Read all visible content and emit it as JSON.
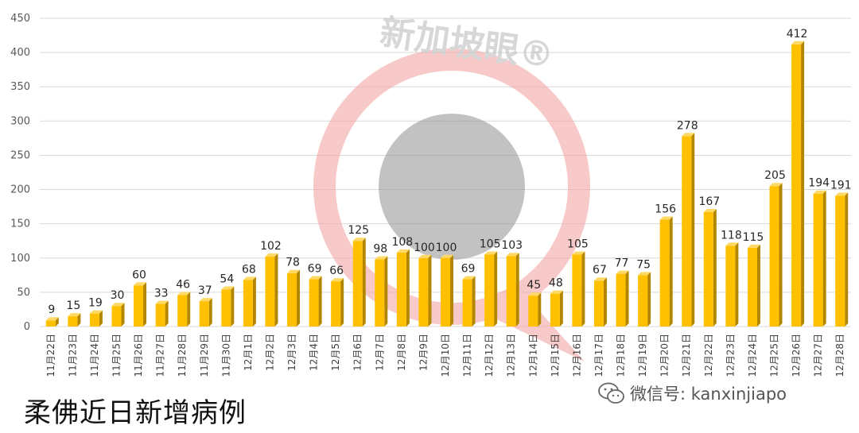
{
  "colors": {
    "bar_front": "#FFC000",
    "bar_side": "#B38600",
    "bar_top": "#FFD966",
    "grid": "#d9d9d9",
    "watermark_ring": "#f4a6a6",
    "watermark_core": "#9a9a9a"
  },
  "watermark": {
    "text": "新加坡眼®"
  },
  "caption": "柔佛近日新增病例",
  "source": {
    "icon": "wechat-icon",
    "text": "微信号: kanxinjiapo"
  },
  "chart_data": {
    "type": "bar",
    "title": "",
    "xlabel": "",
    "ylabel": "",
    "ylim": [
      0,
      450
    ],
    "yticks": [
      0,
      50,
      100,
      150,
      200,
      250,
      300,
      350,
      400,
      450
    ],
    "grid": true,
    "legend": "none",
    "categories": [
      "11月22日",
      "11月23日",
      "11月24日",
      "11月25日",
      "11月26日",
      "11月27日",
      "11月28日",
      "11月29日",
      "11月30日",
      "12月1日",
      "12月2日",
      "12月3日",
      "12月4日",
      "12月5日",
      "12月6日",
      "12月7日",
      "12月8日",
      "12月9日",
      "12月10日",
      "12月11日",
      "12月12日",
      "12月13日",
      "12月14日",
      "12月15日",
      "12月16日",
      "12月17日",
      "12月18日",
      "12月19日",
      "12月20日",
      "12月21日",
      "12月22日",
      "12月23日",
      "12月24日",
      "12月25日",
      "12月26日",
      "12月27日",
      "12月28日"
    ],
    "values": [
      9,
      15,
      19,
      30,
      60,
      33,
      46,
      37,
      54,
      68,
      102,
      78,
      69,
      66,
      125,
      98,
      108,
      100,
      100,
      69,
      105,
      103,
      45,
      48,
      105,
      67,
      77,
      75,
      156,
      278,
      167,
      118,
      115,
      205,
      412,
      194,
      191
    ]
  }
}
